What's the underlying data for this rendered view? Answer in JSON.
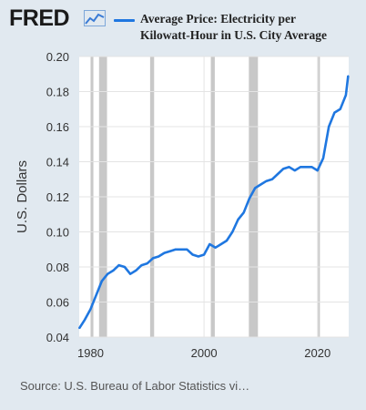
{
  "header": {
    "logo_text": "FRED",
    "logo_icon": "line-chart-icon",
    "legend_label_line1": "Average Price: Electricity per",
    "legend_label_line2": "Kilowatt-Hour in U.S. City Average"
  },
  "source_text": "Source: U.S. Bureau of Labor Statistics vi…",
  "colors": {
    "background": "#e1e9f0",
    "plot_bg": "#ffffff",
    "series": "#1f77e0",
    "recession": "#c8c8c8"
  },
  "chart_data": {
    "type": "line",
    "title": "",
    "xlabel": "",
    "ylabel": "U.S. Dollars",
    "xlim": [
      1978,
      2025.5
    ],
    "ylim": [
      0.04,
      0.2
    ],
    "yticks": [
      "0.04",
      "0.06",
      "0.08",
      "0.10",
      "0.12",
      "0.14",
      "0.16",
      "0.18",
      "0.20"
    ],
    "xticks": [
      "1980",
      "2000",
      "2020"
    ],
    "grid": true,
    "recessions": [
      [
        1980.0,
        1980.5
      ],
      [
        1981.5,
        1982.9
      ],
      [
        1990.5,
        1991.2
      ],
      [
        2001.2,
        2001.9
      ],
      [
        2007.9,
        2009.5
      ],
      [
        2020.1,
        2020.4
      ]
    ],
    "series": [
      {
        "name": "Average Price: Electricity per Kilowatt-Hour in U.S. City Average",
        "x": [
          1978.0,
          1979.0,
          1980.0,
          1981.0,
          1982.0,
          1983.0,
          1984.0,
          1985.0,
          1986.0,
          1987.0,
          1988.0,
          1989.0,
          1990.0,
          1991.0,
          1992.0,
          1993.0,
          1994.0,
          1995.0,
          1996.0,
          1997.0,
          1998.0,
          1999.0,
          2000.0,
          2001.0,
          2002.0,
          2003.0,
          2004.0,
          2005.0,
          2006.0,
          2007.0,
          2008.0,
          2009.0,
          2010.0,
          2011.0,
          2012.0,
          2013.0,
          2014.0,
          2015.0,
          2016.0,
          2017.0,
          2018.0,
          2019.0,
          2020.0,
          2021.0,
          2022.0,
          2023.0,
          2024.0,
          2025.0,
          2025.4
        ],
        "y": [
          0.045,
          0.05,
          0.056,
          0.064,
          0.072,
          0.076,
          0.078,
          0.081,
          0.08,
          0.076,
          0.078,
          0.081,
          0.082,
          0.085,
          0.086,
          0.088,
          0.089,
          0.09,
          0.09,
          0.09,
          0.087,
          0.086,
          0.087,
          0.093,
          0.091,
          0.093,
          0.095,
          0.1,
          0.107,
          0.111,
          0.119,
          0.125,
          0.127,
          0.129,
          0.13,
          0.133,
          0.136,
          0.137,
          0.135,
          0.137,
          0.137,
          0.137,
          0.135,
          0.142,
          0.16,
          0.168,
          0.17,
          0.178,
          0.189
        ]
      }
    ]
  }
}
